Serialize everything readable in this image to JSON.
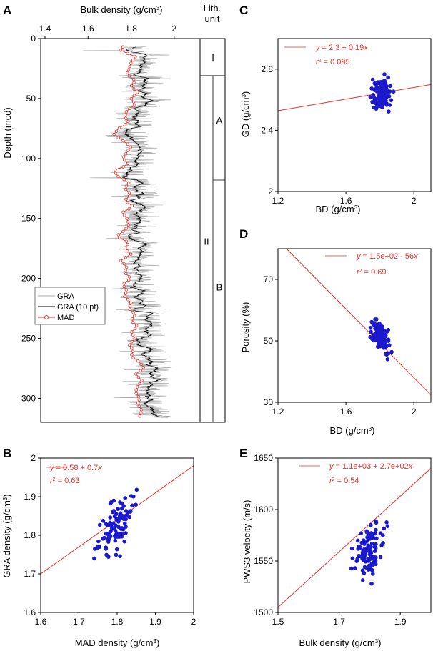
{
  "panels": {
    "A": {
      "letter": "A",
      "xlabel_main": "Bulk density (g/cm",
      "xlabel_sup": "3",
      "xlabel_end": ")",
      "ylabel": "Depth (mcd)",
      "xlim": [
        1.38,
        2.12
      ],
      "ylim": [
        0,
        320
      ],
      "xticks": [
        "1.4",
        "1.6",
        "1.8",
        "2"
      ],
      "yticks": [
        "0",
        "50",
        "100",
        "150",
        "200",
        "250",
        "300"
      ],
      "legend": {
        "gra": "GRA",
        "gra10": "GRA (10 pt)",
        "mad": "MAD"
      },
      "lith_header": [
        "Lith.",
        "unit"
      ],
      "units": [
        {
          "name": "I",
          "top": 0,
          "bottom": 31
        },
        {
          "name": "II",
          "top": 31,
          "bottom": 320
        }
      ],
      "subunits": [
        {
          "name": "A",
          "top": 31,
          "bottom": 118
        },
        {
          "name": "B",
          "top": 118,
          "bottom": 320
        }
      ],
      "mad_profile": [
        [
          0,
          1.78
        ],
        [
          5,
          1.77
        ],
        [
          10,
          1.75
        ],
        [
          15,
          1.82
        ],
        [
          20,
          1.8
        ],
        [
          25,
          1.79
        ],
        [
          30,
          1.78
        ],
        [
          35,
          1.82
        ],
        [
          40,
          1.8
        ],
        [
          45,
          1.83
        ],
        [
          50,
          1.8
        ],
        [
          55,
          1.82
        ],
        [
          60,
          1.78
        ],
        [
          65,
          1.77
        ],
        [
          70,
          1.79
        ],
        [
          75,
          1.74
        ],
        [
          80,
          1.72
        ],
        [
          85,
          1.76
        ],
        [
          90,
          1.8
        ],
        [
          95,
          1.78
        ],
        [
          100,
          1.76
        ],
        [
          105,
          1.79
        ],
        [
          110,
          1.72
        ],
        [
          115,
          1.74
        ],
        [
          120,
          1.79
        ],
        [
          125,
          1.77
        ],
        [
          130,
          1.8
        ],
        [
          135,
          1.77
        ],
        [
          140,
          1.81
        ],
        [
          145,
          1.76
        ],
        [
          150,
          1.78
        ],
        [
          155,
          1.79
        ],
        [
          160,
          1.77
        ],
        [
          165,
          1.73
        ],
        [
          170,
          1.79
        ],
        [
          175,
          1.77
        ],
        [
          180,
          1.8
        ],
        [
          185,
          1.75
        ],
        [
          190,
          1.78
        ],
        [
          195,
          1.77
        ],
        [
          200,
          1.8
        ],
        [
          205,
          1.76
        ],
        [
          210,
          1.78
        ],
        [
          215,
          1.77
        ],
        [
          220,
          1.8
        ],
        [
          225,
          1.79
        ],
        [
          230,
          1.82
        ],
        [
          235,
          1.8
        ],
        [
          240,
          1.83
        ],
        [
          245,
          1.8
        ],
        [
          250,
          1.82
        ],
        [
          255,
          1.79
        ],
        [
          260,
          1.81
        ],
        [
          265,
          1.8
        ],
        [
          270,
          1.84
        ],
        [
          275,
          1.86
        ],
        [
          280,
          1.82
        ],
        [
          285,
          1.85
        ],
        [
          290,
          1.83
        ],
        [
          295,
          1.82
        ],
        [
          300,
          1.84
        ],
        [
          305,
          1.83
        ],
        [
          310,
          1.85
        ],
        [
          315,
          1.84
        ]
      ]
    },
    "B": {
      "letter": "B",
      "xlabel_main": "MAD density (g/cm",
      "xlabel_sup": "3",
      "xlabel_end": ")",
      "ylabel_main": "GRA density (g/cm",
      "ylabel_sup": "3",
      "ylabel_end": ")",
      "xlim": [
        1.6,
        2.0
      ],
      "ylim": [
        1.6,
        2.0
      ],
      "xticks": [
        1.6,
        1.7,
        1.8,
        1.9,
        2.0
      ],
      "xtick_labels": [
        "1.6",
        "1.7",
        "1.8",
        "1.9",
        "2"
      ],
      "yticks": [
        1.6,
        1.7,
        1.8,
        1.9,
        2.0
      ],
      "ytick_labels": [
        "1.6",
        "1.7",
        "1.8",
        "1.9",
        "2"
      ],
      "fit": {
        "a": 0.58,
        "b": 0.7
      },
      "eq_y": "y",
      "eq_rest": " = 0.58 + 0.7",
      "eq_x": "x",
      "r2_r": "r",
      "r2_sup": "2",
      "r2_val": " = 0.63",
      "cx": [
        1.74,
        1.88
      ],
      "cy": [
        1.74,
        1.94
      ],
      "center": [
        1.8,
        1.83
      ],
      "n": 95
    },
    "C": {
      "letter": "C",
      "xlabel_main": "BD (g/cm",
      "xlabel_sup": "3",
      "xlabel_end": ")",
      "ylabel_main": "GD (g/cm",
      "ylabel_sup": "3",
      "ylabel_end": ")",
      "xlim": [
        1.2,
        2.1
      ],
      "ylim": [
        2.0,
        3.0
      ],
      "xticks": [
        1.2,
        1.6,
        2.0
      ],
      "xtick_labels": [
        "1.2",
        "1.6",
        "2"
      ],
      "yticks": [
        2.0,
        2.4,
        2.8
      ],
      "ytick_labels": [
        "2",
        "2.4",
        "2.8"
      ],
      "fit": {
        "a": 2.3,
        "b": 0.19
      },
      "eq_y": "y",
      "eq_rest": " = 2.3 + 0.19",
      "eq_x": "x",
      "r2_r": "r",
      "r2_sup": "2",
      "r2_val": " = 0.095",
      "cx": [
        1.74,
        1.88
      ],
      "cy": [
        2.49,
        2.79
      ],
      "center": [
        1.81,
        2.64
      ],
      "n": 100
    },
    "D": {
      "letter": "D",
      "xlabel_main": "BD (g/cm",
      "xlabel_sup": "3",
      "xlabel_end": ")",
      "ylabel": "Porosity (%)",
      "xlim": [
        1.2,
        2.1
      ],
      "ylim": [
        30,
        80
      ],
      "xticks": [
        1.2,
        1.6,
        2.0
      ],
      "xtick_labels": [
        "1.2",
        "1.6",
        "2"
      ],
      "yticks": [
        30,
        50,
        70
      ],
      "ytick_labels": [
        "30",
        "50",
        "70"
      ],
      "fit": {
        "a": 150,
        "b": -56
      },
      "eq_y": "y",
      "eq_rest": " = 1.5e+02 - 56",
      "eq_x": "x",
      "r2_r": "r",
      "r2_sup": "2",
      "r2_val": " = 0.69",
      "cx": [
        1.74,
        1.88
      ],
      "cy": [
        44,
        57
      ],
      "center": [
        1.8,
        51.5
      ],
      "n": 100
    },
    "E": {
      "letter": "E",
      "xlabel_main": "Bulk density (g/cm",
      "xlabel_sup": "3",
      "xlabel_end": ")",
      "ylabel": "PWS3 velocity (m/s)",
      "xlim": [
        1.5,
        2.0
      ],
      "ylim": [
        1500,
        1650
      ],
      "xticks": [
        1.5,
        1.7,
        1.9
      ],
      "xtick_labels": [
        "1.5",
        "1.7",
        "1.9"
      ],
      "yticks": [
        1500,
        1550,
        1600,
        1650
      ],
      "ytick_labels": [
        "1500",
        "1550",
        "1600",
        "1650"
      ],
      "fit": {
        "a": 1100,
        "b": 270
      },
      "eq_y": "y",
      "eq_rest": " = 1.1e+03 + 2.7e+02",
      "eq_x": "x",
      "r2_r": "r",
      "r2_sup": "2",
      "r2_val": " = 0.54",
      "cx": [
        1.74,
        1.87
      ],
      "cy": [
        1528,
        1613
      ],
      "center": [
        1.8,
        1562
      ],
      "n": 100
    }
  },
  "chart_data": [
    {
      "type": "line",
      "panel": "A",
      "xlabel": "Bulk density (g/cm3)",
      "ylabel": "Depth (mcd)",
      "xlim": [
        1.38,
        2.12
      ],
      "ylim": [
        0,
        320
      ],
      "series": [
        {
          "name": "GRA"
        },
        {
          "name": "GRA (10 pt)"
        },
        {
          "name": "MAD"
        }
      ]
    },
    {
      "type": "scatter",
      "panel": "B",
      "xlabel": "MAD density (g/cm3)",
      "ylabel": "GRA density (g/cm3)",
      "xlim": [
        1.6,
        2.0
      ],
      "ylim": [
        1.6,
        2.0
      ]
    },
    {
      "type": "scatter",
      "panel": "C",
      "xlabel": "BD (g/cm3)",
      "ylabel": "GD (g/cm3)",
      "xlim": [
        1.2,
        2.1
      ],
      "ylim": [
        2.0,
        3.0
      ]
    },
    {
      "type": "scatter",
      "panel": "D",
      "xlabel": "BD (g/cm3)",
      "ylabel": "Porosity (%)",
      "xlim": [
        1.2,
        2.1
      ],
      "ylim": [
        30,
        80
      ]
    },
    {
      "type": "scatter",
      "panel": "E",
      "xlabel": "Bulk density (g/cm3)",
      "ylabel": "PWS3 velocity (m/s)",
      "xlim": [
        1.5,
        2.0
      ],
      "ylim": [
        1500,
        1650
      ]
    }
  ],
  "colors": {
    "mad": "#e8322c",
    "gra": "#a8a8a8",
    "gra10": "#000000",
    "points": "#1a1acc",
    "fit": "#e8322c"
  }
}
